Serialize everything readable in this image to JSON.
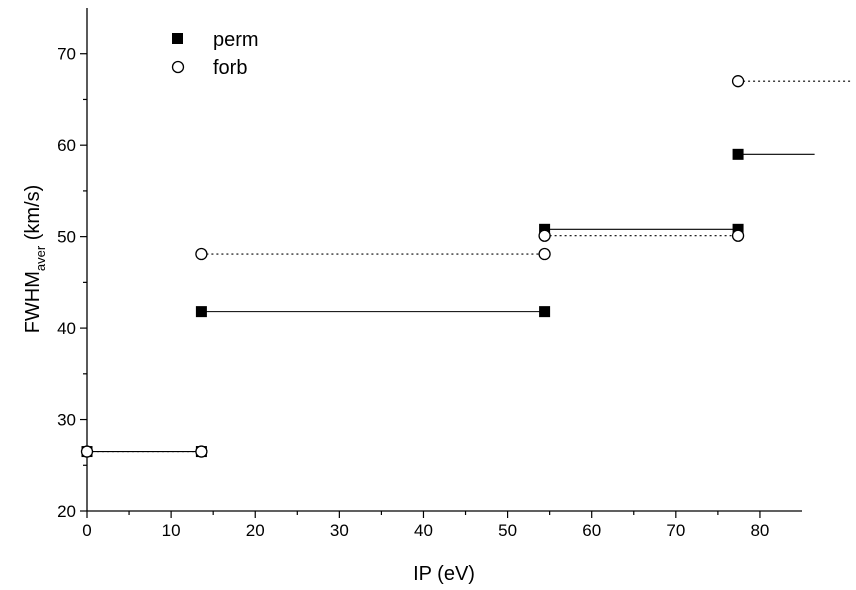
{
  "chart_data": {
    "type": "scatter",
    "xlabel": "IP (eV)",
    "ylabel": {
      "main": "FWHM",
      "subscript": "aver",
      "suffix": " (km/s)"
    },
    "xlim": [
      0,
      85
    ],
    "ylim": [
      20,
      75
    ],
    "x_ticks": [
      0,
      10,
      20,
      30,
      40,
      50,
      60,
      70,
      80
    ],
    "x_minor_step": 5,
    "y_ticks": [
      20,
      30,
      40,
      50,
      60,
      70
    ],
    "y_minor_step": 5,
    "grid": false,
    "legend_position": "top-left",
    "series": [
      {
        "name": "perm",
        "marker": "filled-square",
        "line_style": "solid",
        "points": [
          {
            "x": 0,
            "y": 26.5
          },
          {
            "x": 13.6,
            "y": 26.5
          },
          {
            "x": 13.6,
            "y": 41.8
          },
          {
            "x": 54.4,
            "y": 41.8
          },
          {
            "x": 54.4,
            "y": 50.8
          },
          {
            "x": 77.4,
            "y": 50.8
          },
          {
            "x": 77.4,
            "y": 59.0
          }
        ],
        "segments": [
          {
            "x": [
              0,
              13.6
            ],
            "y": 26.5
          },
          {
            "x": [
              13.6,
              54.4
            ],
            "y": 41.8
          },
          {
            "x": [
              54.4,
              77.4
            ],
            "y": 50.8
          },
          {
            "x": [
              77.4,
              86.5
            ],
            "y": 59.0
          }
        ]
      },
      {
        "name": "forb",
        "marker": "open-circle",
        "line_style": "dotted",
        "points": [
          {
            "x": 0,
            "y": 26.5
          },
          {
            "x": 13.6,
            "y": 26.5
          },
          {
            "x": 13.6,
            "y": 48.1
          },
          {
            "x": 54.4,
            "y": 48.1
          },
          {
            "x": 54.4,
            "y": 50.1
          },
          {
            "x": 77.4,
            "y": 50.1
          },
          {
            "x": 77.4,
            "y": 67.0
          }
        ],
        "segments": [
          {
            "x": [
              0,
              13.6
            ],
            "y": 26.5
          },
          {
            "x": [
              13.6,
              54.4
            ],
            "y": 48.1
          },
          {
            "x": [
              54.4,
              77.4
            ],
            "y": 50.1
          },
          {
            "x": [
              77.4,
              91
            ],
            "y": 67.0
          }
        ]
      }
    ]
  }
}
